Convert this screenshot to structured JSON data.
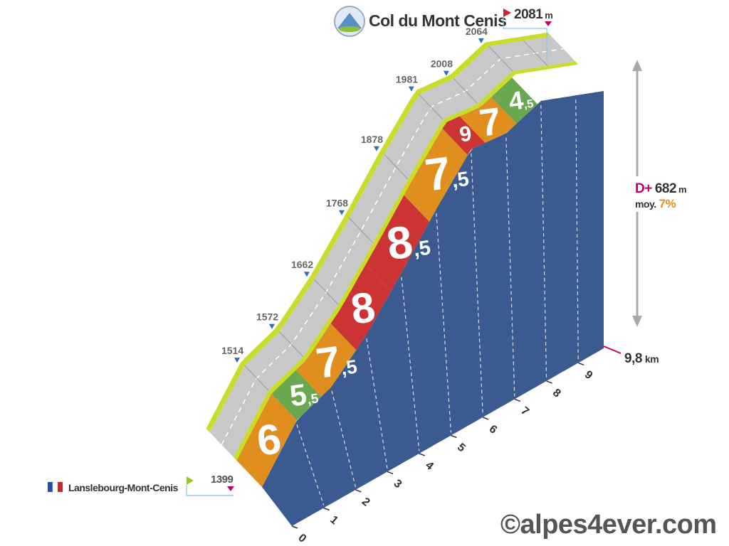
{
  "chart_data": {
    "type": "area",
    "title": "Col du Mont Cenis",
    "summit_altitude": "2081",
    "summit_unit": "m",
    "start_name": "Lanslebourg-Mont-Cenis",
    "start_altitude": "1399",
    "distance_label": "9,8",
    "distance_unit": "km",
    "gain_prefix": "D+",
    "gain_value": "682",
    "gain_unit": "m",
    "avg_prefix": "moy.",
    "avg_value": "7%",
    "watermark": "©alpes4ever.com",
    "km_ticks": [
      "0",
      "1",
      "2",
      "3",
      "4",
      "5",
      "6",
      "7",
      "8",
      "9"
    ],
    "altitudes": [
      {
        "km": 0,
        "alt": "1399"
      },
      {
        "km": 1,
        "alt": "1514"
      },
      {
        "km": 2,
        "alt": "1572"
      },
      {
        "km": 3,
        "alt": "1662"
      },
      {
        "km": 4,
        "alt": "1768"
      },
      {
        "km": 5,
        "alt": "1878"
      },
      {
        "km": 6,
        "alt": "1981"
      },
      {
        "km": 7,
        "alt": "2008"
      },
      {
        "km": 8,
        "alt": "2064"
      },
      {
        "km": 9.8,
        "alt": "2081"
      }
    ],
    "segments": [
      {
        "from": 0,
        "to": 1,
        "grade": "6",
        "color": "#e08e1e"
      },
      {
        "from": 1,
        "to": 1.7,
        "grade": "5,5",
        "color": "#6aa84f"
      },
      {
        "from": 1.7,
        "to": 2.7,
        "grade": "7,5",
        "color": "#e08e1e"
      },
      {
        "from": 2.7,
        "to": 3.7,
        "grade": "8",
        "color": "#cc3333"
      },
      {
        "from": 3.7,
        "to": 4.8,
        "grade": "8,5",
        "color": "#cc3333"
      },
      {
        "from": 4.8,
        "to": 5.9,
        "grade": "7,5",
        "color": "#e08e1e"
      },
      {
        "from": 5.9,
        "to": 6.4,
        "grade": "9",
        "color": "#cc3333"
      },
      {
        "from": 6.4,
        "to": 7.3,
        "grade": "7",
        "color": "#e08e1e"
      },
      {
        "from": 7.3,
        "to": 7.9,
        "grade": "4,5",
        "color": "#6aa84f"
      }
    ],
    "colors": {
      "side": "#3a5a90",
      "road": "#c8c8c8",
      "verge": "#c9dc2a",
      "altitude_marker": "#2f6fb5",
      "start_flag": "#9cc23a",
      "summit_flag": "#cc2233",
      "accent_pink": "#c0006a",
      "accent_orange": "#e08e1e"
    }
  }
}
